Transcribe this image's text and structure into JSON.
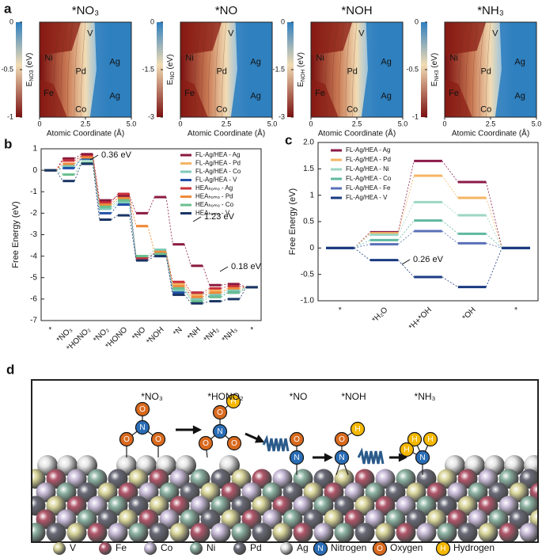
{
  "panels": [
    "a",
    "b",
    "c",
    "d"
  ],
  "chart_data": [
    {
      "type": "heatmap",
      "title": "*NO₃",
      "ylabel": {
        "main": "E",
        "sub": "NO3",
        "unit": " (eV)"
      },
      "xlabel": "Atomic Coordinate (Å)",
      "xlim": [
        0,
        5
      ],
      "xticks": [
        0,
        2.5,
        {
          "value": 5,
          "label": "5.0"
        }
      ],
      "clim": [
        -1,
        0
      ],
      "cticks": [
        0,
        -0.5,
        -1
      ],
      "annotations": [
        "V",
        "Ni",
        "Pd",
        "Ag",
        "Fe",
        "Co",
        "Ag"
      ]
    },
    {
      "type": "heatmap",
      "title": "*NO",
      "ylabel": {
        "main": "E",
        "sub": "NO",
        "unit": " (eV)"
      },
      "xlabel": "Atomic Coordinate (Å)",
      "xlim": [
        0,
        5
      ],
      "xticks": [
        0,
        2.5,
        {
          "value": 5,
          "label": "5.0"
        }
      ],
      "clim": [
        -3,
        0
      ],
      "cticks": [
        0,
        -1.5,
        -3
      ],
      "annotations": [
        "V",
        "Ni",
        "Pd",
        "Ag",
        "Fe",
        "Co",
        "Ag"
      ]
    },
    {
      "type": "heatmap",
      "title": "*NOH",
      "ylabel": {
        "main": "E",
        "sub": "NOH",
        "unit": " (eV)"
      },
      "xlabel": "Atomic Coordinate (Å)",
      "xlim": [
        0,
        5
      ],
      "xticks": [
        0,
        2.5,
        {
          "value": 5,
          "label": "5.0"
        }
      ],
      "clim": [
        -3,
        0
      ],
      "cticks": [
        0,
        -1.5,
        -3
      ],
      "annotations": [
        "V",
        "Ni",
        "Pd",
        "Ag",
        "Fe",
        "Co",
        "Ag"
      ]
    },
    {
      "type": "heatmap",
      "title": "*NH₃",
      "ylabel": {
        "main": "E",
        "sub": "NH3",
        "unit": " (eV)"
      },
      "xlabel": "Atomic Coordinate (Å)",
      "xlim": [
        0,
        5
      ],
      "xticks": [
        0,
        2.5,
        {
          "value": 5,
          "label": "5.0"
        }
      ],
      "clim": [
        -1,
        0
      ],
      "cticks": [
        0,
        -0.5,
        -1
      ],
      "annotations": [
        "V",
        "Ni",
        "Pd",
        "Ag",
        "Fe",
        "Co",
        "Ag"
      ]
    },
    {
      "type": "energy_levels",
      "ylabel": "Free Energy (eV)",
      "categories": [
        "*",
        "*NO₃",
        "*HONO₂",
        "*NO₂",
        "*HONO",
        "*NO",
        "*NOH",
        "*N",
        "*NH",
        "*NH₂",
        "*NH₃",
        "*"
      ],
      "ylim": [
        -7,
        1
      ],
      "yticks": [
        1,
        0,
        -1,
        -2,
        -3,
        -4,
        -5,
        -6,
        -7
      ],
      "series": [
        {
          "name": "FL-Ag/HEA - Ag",
          "color": "#8b1a3e",
          "values": [
            0,
            0.55,
            0.75,
            -1.4,
            -1.2,
            -2.0,
            -1.25,
            -3.45,
            -4.45,
            -5.35,
            -5.3,
            -5.45
          ]
        },
        {
          "name": "FL-Ag/HEA - Pd",
          "color": "#f5b463",
          "values": [
            0,
            0.45,
            0.65,
            -1.6,
            -1.3,
            -2.6,
            -3.8,
            -5.3,
            -5.8,
            -5.6,
            -5.6,
            -5.45
          ]
        },
        {
          "name": "FL-Ag/HEA - Co",
          "color": "#7fcab8",
          "values": [
            0,
            0.2,
            0.5,
            -1.8,
            -1.5,
            -4.0,
            -3.7,
            -5.6,
            -6.0,
            -5.8,
            -5.6,
            -5.45
          ]
        },
        {
          "name": "FL-Ag/HEA - V",
          "color": "#2050a8",
          "values": [
            0,
            0.1,
            0.55,
            -2.0,
            -1.6,
            -4.1,
            -3.9,
            -5.7,
            -5.7,
            -5.9,
            -5.7,
            -5.45
          ]
        },
        {
          "name": "HEAₕₒₘₒ - Ag",
          "color": "#c8303c",
          "values": [
            0,
            0.45,
            0.65,
            -1.5,
            -1.1,
            -4.1,
            -3.85,
            -5.2,
            -5.7,
            -5.5,
            -5.4,
            -5.45
          ]
        },
        {
          "name": "HEAₕₒₘₒ - Pd",
          "color": "#f08a3a",
          "values": [
            0,
            0.3,
            0.6,
            -1.6,
            -1.3,
            -2.6,
            -3.8,
            -5.4,
            -5.9,
            -5.7,
            -5.5,
            -5.45
          ]
        },
        {
          "name": "HEAₕₒₘₒ - Co",
          "color": "#6abf8e",
          "values": [
            0,
            -0.2,
            0.35,
            -1.7,
            -1.4,
            -4.0,
            -3.9,
            -5.5,
            -6.1,
            -5.9,
            -5.7,
            -5.45
          ]
        },
        {
          "name": "HEAₕₒₘₒ - V",
          "color": "#1a3566",
          "values": [
            0,
            -0.5,
            0.3,
            -2.3,
            -2.1,
            -4.2,
            -4.0,
            -5.8,
            -6.2,
            -6.1,
            -6.0,
            -5.45
          ]
        }
      ],
      "annotations": [
        "0.36 eV",
        "1.23 eV",
        "0.18 eV"
      ]
    },
    {
      "type": "energy_levels",
      "ylabel": "Free Energy (eV)",
      "categories": [
        "*",
        "*H₂O",
        "*H+*OH",
        "*OH",
        "*"
      ],
      "ylim": [
        -1,
        2
      ],
      "yticks": [
        {
          "value": 2,
          "label": "2.0"
        },
        1.5,
        1,
        0.5,
        0,
        -0.5,
        {
          "value": -1,
          "label": "-1.0"
        }
      ],
      "series": [
        {
          "name": "FL-Ag/HEA - Ag",
          "color": "#8b1a4a",
          "values": [
            0,
            0.3,
            1.65,
            1.25,
            0
          ]
        },
        {
          "name": "FL-Ag/HEA - Pd",
          "color": "#f5b463",
          "values": [
            0,
            0.28,
            1.37,
            0.95,
            0
          ]
        },
        {
          "name": "FL-Ag/HEA - Ni",
          "color": "#9ed6c4",
          "values": [
            0,
            0.25,
            0.87,
            0.62,
            0
          ]
        },
        {
          "name": "FL-Ag/HEA - Co",
          "color": "#5fb8a0",
          "values": [
            0,
            0.15,
            0.52,
            0.27,
            0
          ]
        },
        {
          "name": "FL-Ag/HEA - Fe",
          "color": "#5a70b8",
          "values": [
            0,
            0.07,
            0.32,
            0.09,
            0
          ]
        },
        {
          "name": "FL-Ag/HEA - V",
          "color": "#1a3a80",
          "values": [
            0,
            -0.23,
            -0.55,
            -0.74,
            0
          ]
        }
      ],
      "annotations": [
        "0.26 eV"
      ]
    }
  ],
  "schematic": {
    "labels": [
      "*NO₃",
      "*HONO₂",
      "*NO",
      "*NOH",
      "*NH₃"
    ],
    "elements": [
      {
        "name": "V",
        "color": "#d9d59a"
      },
      {
        "name": "Fe",
        "color": "#b0566a"
      },
      {
        "name": "Co",
        "color": "#c9bcd9"
      },
      {
        "name": "Ni",
        "color": "#8cb2a2"
      },
      {
        "name": "Pd",
        "color": "#6a6a78"
      },
      {
        "name": "Ag",
        "color": "#e6e6e6"
      }
    ],
    "atoms": [
      {
        "letter": "N",
        "name": "Nitrogen",
        "color": "#2a6db5"
      },
      {
        "letter": "O",
        "name": "Oxygen",
        "color": "#d96a1e"
      },
      {
        "letter": "H",
        "name": "Hydrogen",
        "color": "#f4b800"
      }
    ]
  }
}
